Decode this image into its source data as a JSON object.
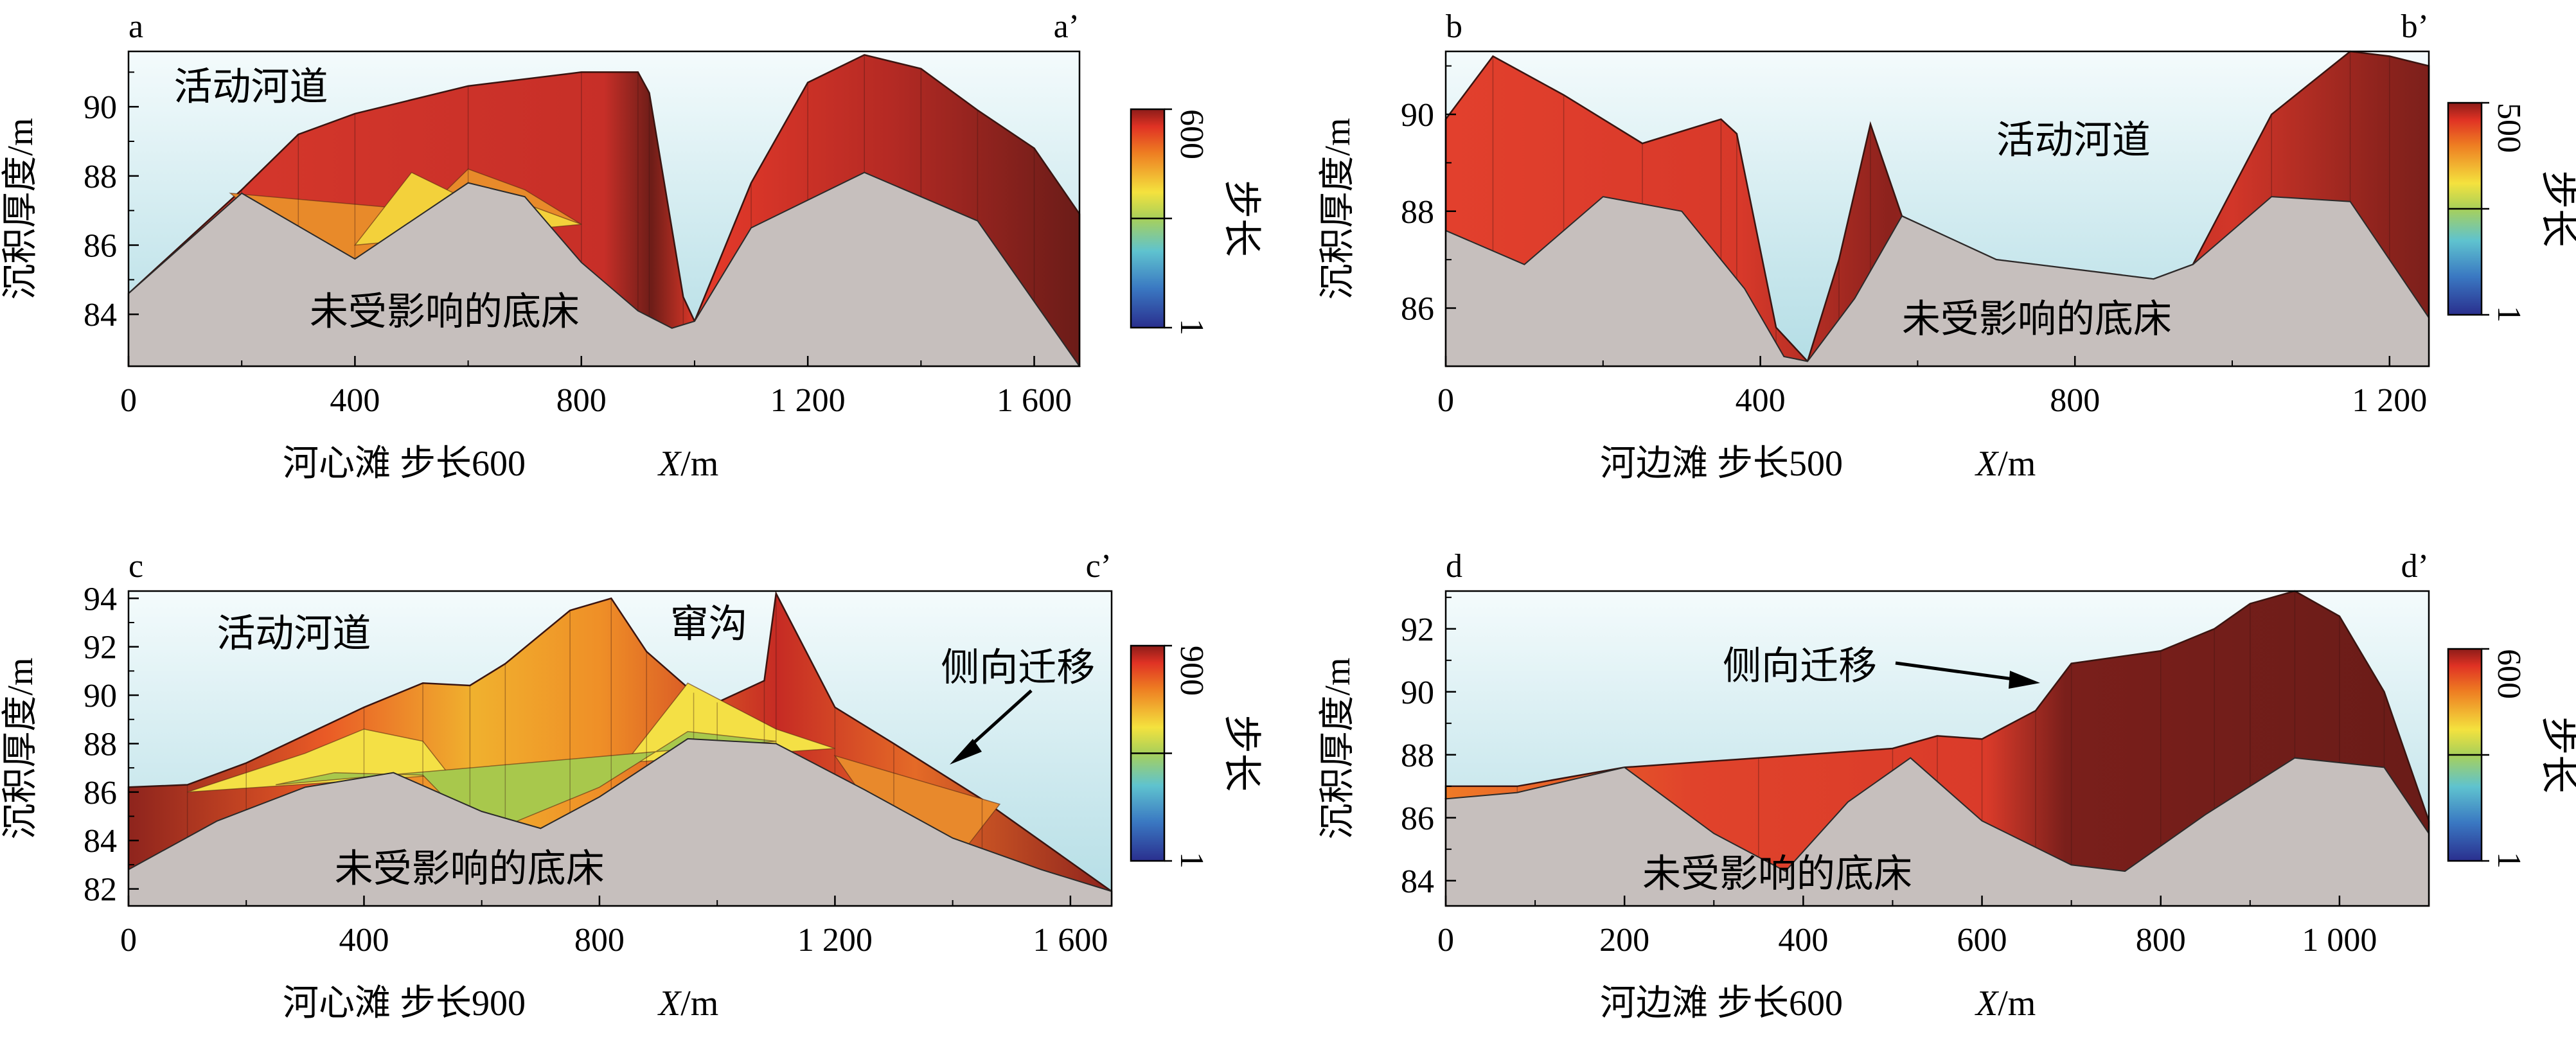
{
  "chart_data": [
    {
      "type": "area",
      "panel_label": "a",
      "panel_label_end": "a’",
      "ylabel": "沉积厚度/m",
      "xlabel": "X/m",
      "xlabel_var": "X",
      "xlabel_unit": "/m",
      "caption": "河心滩 步长600",
      "xlim": [
        0,
        1680
      ],
      "ylim": [
        82.5,
        91.6
      ],
      "xticks": [
        0,
        400,
        800,
        1200,
        1600
      ],
      "xtick_labels": [
        "0",
        "400",
        "800",
        "1 200",
        "1 600"
      ],
      "yticks": [
        84,
        86,
        88,
        90
      ],
      "ytick_labels": [
        "84",
        "86",
        "88",
        "90"
      ],
      "colorbar": {
        "label": "步长",
        "min_label": "1",
        "max_label": "600"
      },
      "annotations": [
        {
          "text": "活动河道",
          "x": 80,
          "y": 90.2
        },
        {
          "text": "未受影响的底床",
          "x": 320,
          "y": 83.7
        }
      ],
      "bed": {
        "x": [
          0,
          200,
          400,
          600,
          700,
          800,
          900,
          960,
          1000,
          1100,
          1300,
          1500,
          1680
        ],
        "y": [
          84.6,
          87.5,
          85.6,
          87.8,
          87.4,
          85.5,
          84.1,
          83.6,
          83.8,
          86.5,
          88.1,
          86.7,
          82.5
        ]
      },
      "surface": {
        "x": [
          0,
          200,
          300,
          400,
          600,
          800,
          900,
          920,
          980,
          1000,
          1100,
          1200,
          1300,
          1400,
          1500,
          1600,
          1680
        ],
        "y": [
          84.6,
          87.6,
          89.2,
          89.8,
          90.6,
          91.0,
          91.0,
          90.4,
          84.5,
          83.8,
          87.8,
          90.7,
          91.5,
          91.1,
          89.9,
          88.8,
          86.9
        ]
      },
      "inner_layers": [
        {
          "x": [
            180,
            260,
            400,
            500,
            600,
            700,
            800
          ],
          "y": [
            87.5,
            86.4,
            85.3,
            86.6,
            88.2,
            87.6,
            86.6
          ],
          "color": "#e88a2a"
        },
        {
          "x": [
            400,
            500,
            600,
            700,
            800
          ],
          "y": [
            86.0,
            88.1,
            87.3,
            87.2,
            86.6
          ],
          "color": "#f3d13b"
        }
      ]
    },
    {
      "type": "area",
      "panel_label": "b",
      "panel_label_end": "b’",
      "ylabel": "沉积厚度/m",
      "xlabel": "X/m",
      "xlabel_var": "X",
      "xlabel_unit": "/m",
      "caption": "河边滩 步长500",
      "xlim": [
        0,
        1250
      ],
      "ylim": [
        84.8,
        91.3
      ],
      "xticks": [
        0,
        400,
        800,
        1200
      ],
      "xtick_labels": [
        "0",
        "400",
        "800",
        "1 200"
      ],
      "yticks": [
        86,
        88,
        90
      ],
      "ytick_labels": [
        "86",
        "88",
        "90"
      ],
      "colorbar": {
        "label": "步长",
        "min_label": "1",
        "max_label": "500"
      },
      "annotations": [
        {
          "text": "活动河道",
          "x": 700,
          "y": 89.2
        },
        {
          "text": "未受影响的底床",
          "x": 580,
          "y": 85.5
        }
      ],
      "bed": {
        "x": [
          0,
          100,
          200,
          300,
          380,
          430,
          460,
          520,
          580,
          700,
          900,
          950,
          1050,
          1150,
          1250
        ],
        "y": [
          87.6,
          86.9,
          88.3,
          88.0,
          86.4,
          85.0,
          84.9,
          86.2,
          87.9,
          87.0,
          86.6,
          86.9,
          88.3,
          88.2,
          85.8
        ]
      },
      "surface": {
        "x": [
          0,
          60,
          150,
          250,
          350,
          370,
          420,
          460,
          500,
          540,
          580,
          700,
          900,
          950,
          1050,
          1150,
          1200,
          1250
        ],
        "y": [
          89.9,
          91.2,
          90.4,
          89.4,
          89.9,
          89.6,
          85.6,
          84.9,
          87.0,
          89.8,
          87.9,
          87.0,
          86.6,
          86.9,
          90.0,
          91.3,
          91.2,
          91.0
        ]
      },
      "inner_layers": []
    },
    {
      "type": "area",
      "panel_label": "c",
      "panel_label_end": "c’",
      "ylabel": "沉积厚度/m",
      "xlabel": "X/m",
      "xlabel_var": "X",
      "xlabel_unit": "/m",
      "caption": "河心滩 步长900",
      "xlim": [
        0,
        1670
      ],
      "ylim": [
        81.3,
        94.3
      ],
      "xticks": [
        0,
        400,
        800,
        1200,
        1600
      ],
      "xtick_labels": [
        "0",
        "400",
        "800",
        "1 200",
        "1 600"
      ],
      "yticks": [
        82,
        84,
        86,
        88,
        90,
        92,
        94
      ],
      "ytick_labels": [
        "82",
        "84",
        "86",
        "88",
        "90",
        "92",
        "94"
      ],
      "colorbar": {
        "label": "步长",
        "min_label": "1",
        "max_label": "900"
      },
      "annotations": [
        {
          "text": "活动河道",
          "x": 150,
          "y": 92.0
        },
        {
          "text": "窜沟",
          "x": 920,
          "y": 92.4
        },
        {
          "text": "侧向迁移",
          "x": 1380,
          "y": 90.6
        },
        {
          "text": "未受影响的底床",
          "x": 350,
          "y": 82.3
        }
      ],
      "bed": {
        "x": [
          0,
          150,
          300,
          450,
          600,
          700,
          800,
          950,
          1100,
          1250,
          1400,
          1550,
          1670
        ],
        "y": [
          82.8,
          84.8,
          86.2,
          86.8,
          85.2,
          84.5,
          85.8,
          88.2,
          88.0,
          86.1,
          84.1,
          82.8,
          81.9
        ]
      },
      "surface": {
        "x": [
          0,
          100,
          200,
          400,
          500,
          580,
          640,
          750,
          820,
          880,
          960,
          1000,
          1080,
          1100,
          1200,
          1300,
          1450,
          1670
        ],
        "y": [
          86.2,
          86.3,
          87.2,
          89.5,
          90.5,
          90.4,
          91.3,
          93.5,
          94.0,
          91.8,
          90.1,
          89.7,
          90.6,
          94.2,
          89.5,
          88.0,
          85.7,
          81.9
        ]
      },
      "inner_layers": [
        {
          "x": [
            100,
            300,
            400,
            500,
            600,
            700,
            850,
            950,
            1100,
            1200
          ],
          "y": [
            86.0,
            87.6,
            88.6,
            88.1,
            85.0,
            85.5,
            87.4,
            90.5,
            88.6,
            87.8
          ],
          "color": "#f4e045"
        },
        {
          "x": [
            250,
            350,
            500,
            600,
            800,
            950,
            1100
          ],
          "y": [
            86.3,
            86.8,
            86.7,
            84.2,
            86.2,
            88.5,
            88.1
          ],
          "color": "#a8c84c"
        },
        {
          "x": [
            1200,
            1300,
            1350,
            1400,
            1480
          ],
          "y": [
            87.5,
            84.0,
            82.0,
            83.0,
            85.5
          ],
          "color": "#e8892c"
        }
      ]
    },
    {
      "type": "area",
      "panel_label": "d",
      "panel_label_end": "d’",
      "ylabel": "沉积厚度/m",
      "xlabel": "X/m",
      "xlabel_var": "X",
      "xlabel_unit": "/m",
      "caption": "河边滩 步长600",
      "xlim": [
        0,
        1100
      ],
      "ylim": [
        83.2,
        93.2
      ],
      "xticks": [
        0,
        200,
        400,
        600,
        800,
        1000
      ],
      "xtick_labels": [
        "0",
        "200",
        "400",
        "600",
        "800",
        "1 000"
      ],
      "yticks": [
        84,
        86,
        88,
        90,
        92
      ],
      "ytick_labels": [
        "84",
        "86",
        "88",
        "90",
        "92"
      ],
      "colorbar": {
        "label": "步长",
        "min_label": "1",
        "max_label": "600"
      },
      "annotations": [
        {
          "text": "侧向迁移",
          "x": 310,
          "y": 90.4
        },
        {
          "text": "未受影响的底床",
          "x": 220,
          "y": 83.8
        }
      ],
      "bed": {
        "x": [
          0,
          80,
          200,
          300,
          380,
          450,
          520,
          600,
          700,
          760,
          850,
          950,
          1050,
          1100
        ],
        "y": [
          86.6,
          86.8,
          87.6,
          85.5,
          84.3,
          86.5,
          87.9,
          85.9,
          84.5,
          84.3,
          86.1,
          87.9,
          87.6,
          85.5
        ]
      },
      "surface": {
        "x": [
          0,
          80,
          200,
          350,
          500,
          550,
          600,
          660,
          700,
          800,
          860,
          900,
          950,
          1000,
          1050,
          1100
        ],
        "y": [
          87.0,
          87.0,
          87.6,
          87.9,
          88.2,
          88.6,
          88.5,
          89.4,
          90.9,
          91.3,
          92.0,
          92.8,
          93.2,
          92.4,
          90.0,
          85.9
        ]
      },
      "inner_layers": [
        {
          "x": [
            0,
            40,
            80
          ],
          "y": [
            86.6,
            86.0,
            86.8
          ],
          "color": "#e88a2a"
        }
      ]
    }
  ]
}
